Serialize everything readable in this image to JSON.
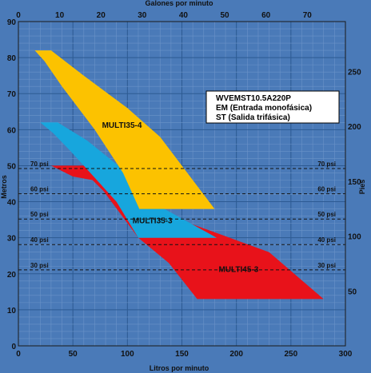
{
  "chart_data": {
    "type": "area",
    "title": "",
    "info_box": [
      "WVEMST10.5A220P",
      "EM (Entrada monofásica)",
      "ST (Salida trifásica)"
    ],
    "xlabel": "Litros por minuto",
    "x2label": "Galones por minuto",
    "ylabel": "Metros",
    "y2label": "Pies",
    "xlim": [
      0,
      300
    ],
    "ylim": [
      0,
      90
    ],
    "x2lim": [
      0,
      79.25
    ],
    "y2lim": [
      0,
      295.3
    ],
    "x_ticks": [
      "0",
      "50",
      "100",
      "150",
      "200",
      "250",
      "300"
    ],
    "x2_ticks": [
      "0",
      "10",
      "20",
      "30",
      "40",
      "50",
      "60",
      "70"
    ],
    "y_ticks": [
      "0",
      "10",
      "20",
      "30",
      "40",
      "50",
      "60",
      "70",
      "80",
      "90"
    ],
    "y2_ticks": [
      "50",
      "100",
      "150",
      "200",
      "250"
    ],
    "grid": true,
    "pressure_lines": [
      {
        "label": "70 psi",
        "y": 49.2
      },
      {
        "label": "60 psi",
        "y": 42.2
      },
      {
        "label": "50 psi",
        "y": 35.2
      },
      {
        "label": "40 psi",
        "y": 28.1
      },
      {
        "label": "30 psi",
        "y": 21.1
      }
    ],
    "series": [
      {
        "name": "MULTI45-3",
        "color": "#e8121a",
        "points": [
          [
            30,
            50
          ],
          [
            60,
            50
          ],
          [
            85,
            47
          ],
          [
            117,
            37
          ],
          [
            148,
            35
          ],
          [
            185,
            31
          ],
          [
            230,
            26
          ],
          [
            280,
            13
          ],
          [
            164,
            13
          ],
          [
            138,
            23
          ],
          [
            110,
            30
          ],
          [
            78,
            43
          ],
          [
            68,
            46
          ],
          [
            50,
            47
          ]
        ]
      },
      {
        "name": "MULTI35-3",
        "color": "#17a6dd",
        "points": [
          [
            20,
            62
          ],
          [
            36,
            62
          ],
          [
            63,
            57
          ],
          [
            100,
            48
          ],
          [
            128,
            39
          ],
          [
            182,
            30
          ],
          [
            110,
            30
          ],
          [
            90,
            40
          ],
          [
            66,
            48
          ],
          [
            48,
            54
          ],
          [
            32,
            59
          ]
        ]
      },
      {
        "name": "MULTI35-4",
        "color": "#fcc200",
        "points": [
          [
            15,
            82
          ],
          [
            30,
            82
          ],
          [
            60,
            75
          ],
          [
            100,
            66
          ],
          [
            130,
            58
          ],
          [
            180,
            38
          ],
          [
            111,
            38
          ],
          [
            96,
            48
          ],
          [
            70,
            60
          ],
          [
            40,
            72
          ],
          [
            24,
            79
          ]
        ]
      }
    ]
  }
}
